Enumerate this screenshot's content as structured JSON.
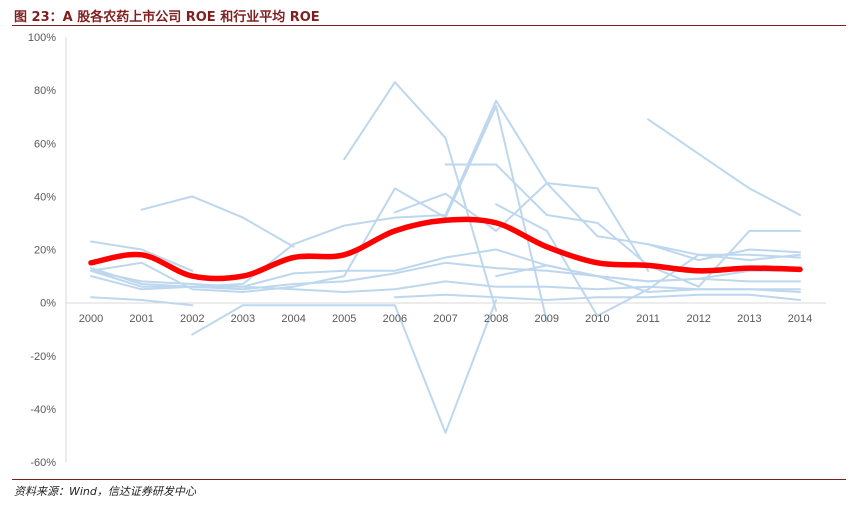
{
  "title": "图 23：A 股各农药上市公司 ROE 和行业平均 ROE",
  "source": "资料来源：Wind，信达证券研发中心",
  "colors": {
    "series": "#bdd7ee",
    "average": "#ff0000",
    "axis": "#d9d9d9",
    "accent": "#7f1f1f"
  },
  "chart_data": {
    "type": "line",
    "x": [
      "2000",
      "2001",
      "2002",
      "2003",
      "2004",
      "2005",
      "2006",
      "2007",
      "2008",
      "2009",
      "2010",
      "2011",
      "2012",
      "2013",
      "2014"
    ],
    "yticks": [
      "100%",
      "80%",
      "60%",
      "40%",
      "20%",
      "0%",
      "-20%",
      "-40%",
      "-60%"
    ],
    "ylim": [
      -60,
      100
    ],
    "grid": false,
    "average": [
      15,
      18,
      10,
      10,
      17,
      18,
      27,
      31,
      30,
      21,
      15,
      14,
      12,
      13,
      12.5
    ],
    "series": [
      {
        "values": [
          null,
          null,
          null,
          null,
          null,
          54,
          83,
          62,
          -3,
          null,
          null,
          null,
          null,
          null,
          null
        ]
      },
      {
        "values": [
          null,
          null,
          null,
          null,
          null,
          null,
          null,
          null,
          null,
          null,
          null,
          69,
          56,
          43,
          33
        ]
      },
      {
        "values": [
          null,
          35,
          40,
          32,
          21,
          null,
          null,
          null,
          null,
          null,
          null,
          null,
          null,
          null,
          null
        ]
      },
      {
        "values": [
          23,
          20,
          12,
          null,
          null,
          null,
          null,
          null,
          null,
          null,
          null,
          null,
          null,
          null,
          null
        ]
      },
      {
        "values": [
          12,
          15,
          5,
          4,
          6,
          10,
          43,
          32,
          74,
          -7,
          null,
          null,
          null,
          null,
          null
        ]
      },
      {
        "values": [
          null,
          null,
          null,
          null,
          null,
          null,
          34,
          41,
          27,
          45,
          43,
          12,
          null,
          null,
          null
        ]
      },
      {
        "values": [
          null,
          null,
          -12,
          -1,
          -1,
          -1,
          -1,
          -49,
          1,
          null,
          null,
          null,
          null,
          null,
          null
        ]
      },
      {
        "values": [
          null,
          null,
          null,
          null,
          null,
          null,
          null,
          52,
          52,
          33,
          30,
          14,
          6,
          27,
          27
        ]
      },
      {
        "values": [
          10,
          5,
          6,
          7,
          22,
          29,
          32,
          33,
          76,
          45,
          25,
          22,
          18,
          16,
          18
        ]
      },
      {
        "values": [
          2,
          1,
          -1,
          null,
          null,
          null,
          null,
          null,
          null,
          null,
          null,
          null,
          null,
          null,
          null
        ]
      },
      {
        "values": [
          null,
          null,
          null,
          null,
          null,
          null,
          null,
          null,
          37,
          27,
          -5,
          5,
          18,
          18,
          17
        ]
      },
      {
        "values": [
          null,
          null,
          null,
          null,
          null,
          null,
          null,
          null,
          null,
          null,
          null,
          22,
          16,
          20,
          19
        ]
      },
      {
        "values": [
          12,
          8,
          7,
          6,
          11,
          12,
          12,
          17,
          20,
          14,
          10,
          8,
          9,
          12,
          12
        ]
      },
      {
        "values": [
          12,
          6,
          6,
          5,
          7,
          8,
          11,
          15,
          13,
          12,
          10,
          8,
          9,
          8,
          8
        ]
      },
      {
        "values": [
          13,
          7,
          6,
          6,
          5,
          4,
          5,
          8,
          6,
          6,
          5,
          6,
          5,
          5,
          5
        ]
      },
      {
        "values": [
          null,
          null,
          null,
          null,
          null,
          null,
          2,
          3,
          2,
          1,
          2,
          2,
          3,
          3,
          1
        ]
      },
      {
        "values": [
          null,
          null,
          null,
          null,
          null,
          null,
          null,
          null,
          10,
          14,
          10,
          4,
          5,
          5,
          4
        ]
      }
    ]
  }
}
